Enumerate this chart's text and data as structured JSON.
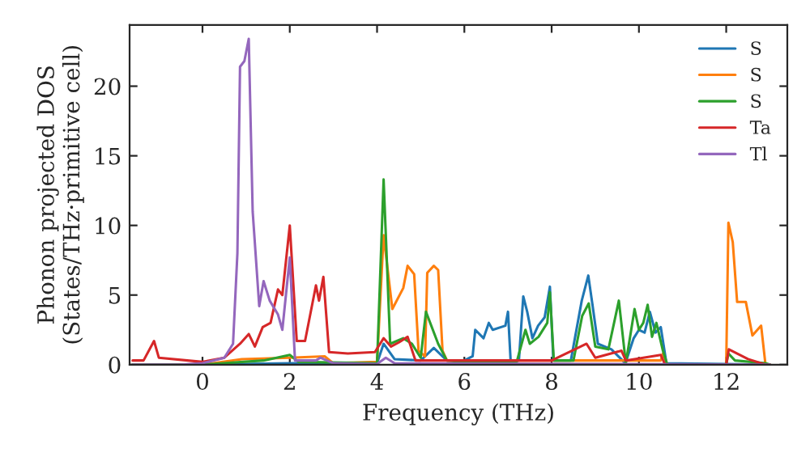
{
  "chart_data": {
    "type": "line",
    "xlabel": "Frequency (THz)",
    "ylabel": "Phonon projected DOS\n(States/THz·primitive cell)",
    "xlim": [
      -1.67,
      13.4
    ],
    "ylim": [
      0,
      24.4
    ],
    "xticks": [
      0,
      2,
      4,
      6,
      8,
      10,
      12
    ],
    "yticks": [
      0,
      5,
      10,
      15,
      20
    ],
    "grid": false,
    "legend": "top right",
    "series": [
      {
        "name": "S",
        "color": "#1f77b4",
        "x": [
          -1.6,
          0,
          2,
          4.0,
          4.15,
          4.4,
          5.0,
          5.3,
          5.6,
          6.0,
          6.19,
          6.25,
          6.44,
          6.56,
          6.65,
          6.94,
          7.0,
          7.06,
          7.25,
          7.35,
          7.44,
          7.56,
          7.69,
          7.84,
          7.96,
          8.04,
          8.44,
          8.69,
          8.84,
          8.94,
          9.06,
          9.37,
          9.56,
          9.69,
          9.88,
          10.0,
          10.13,
          10.25,
          10.38,
          10.5,
          10.63,
          13.0
        ],
        "values": [
          0,
          0,
          0.1,
          0.1,
          1.5,
          0.4,
          0.3,
          1.2,
          0.3,
          0.3,
          0.6,
          2.5,
          1.9,
          3.0,
          2.5,
          2.8,
          3.8,
          0.3,
          0.3,
          4.9,
          3.8,
          1.9,
          2.8,
          3.4,
          5.6,
          0.3,
          0.3,
          4.6,
          6.4,
          4.2,
          1.5,
          1.1,
          0.5,
          0.1,
          1.9,
          2.5,
          2.3,
          3.8,
          2.3,
          2.7,
          0.1,
          0
        ]
      },
      {
        "name": "S",
        "color": "#ff7f0e",
        "x": [
          -1.6,
          0,
          0.9,
          2.0,
          2.8,
          3.0,
          4.0,
          4.15,
          4.35,
          4.6,
          4.7,
          4.85,
          4.95,
          5.1,
          5.15,
          5.3,
          5.4,
          5.5,
          5.6,
          6.0,
          8.0,
          10.5,
          10.55,
          10.65,
          12.0,
          12.05,
          12.15,
          12.25,
          12.45,
          12.6,
          12.8,
          12.9,
          13.0
        ],
        "values": [
          0,
          0,
          0.4,
          0.5,
          0.6,
          0.1,
          0.2,
          9.3,
          4.0,
          5.5,
          7.1,
          6.5,
          1.0,
          0.6,
          6.6,
          7.1,
          6.8,
          1.0,
          0.3,
          0.3,
          0.3,
          0.3,
          0.8,
          0,
          0,
          10.2,
          8.8,
          4.5,
          4.5,
          2.1,
          2.8,
          0,
          0
        ]
      },
      {
        "name": "S",
        "color": "#2ca02c",
        "x": [
          -1.6,
          0,
          1.4,
          2.0,
          2.2,
          4.0,
          4.15,
          4.3,
          4.6,
          4.8,
          5.0,
          5.12,
          5.4,
          5.6,
          6.0,
          7.2,
          7.4,
          7.5,
          7.7,
          7.9,
          7.96,
          8.05,
          8.5,
          8.7,
          8.85,
          9.0,
          9.3,
          9.54,
          9.7,
          9.9,
          10.0,
          10.1,
          10.2,
          10.3,
          10.4,
          10.55,
          10.65,
          12.0,
          12.05,
          12.2,
          12.9,
          13.0
        ],
        "values": [
          0,
          0,
          0.3,
          0.7,
          0.2,
          0.1,
          13.3,
          1.5,
          1.9,
          1.5,
          0.5,
          3.8,
          1.5,
          0.3,
          0.2,
          0.2,
          2.5,
          1.5,
          2.0,
          3.0,
          5.2,
          0.3,
          0.3,
          3.5,
          4.4,
          1.3,
          1.1,
          4.6,
          0.1,
          4.0,
          2.5,
          3.0,
          4.3,
          2.0,
          3.0,
          1.0,
          0,
          0,
          0.8,
          0.3,
          0.1,
          0
        ]
      },
      {
        "name": "Ta",
        "color": "#d62728",
        "x": [
          -1.6,
          -1.35,
          -1.11,
          -1.0,
          0,
          0.5,
          0.86,
          1.06,
          1.2,
          1.38,
          1.56,
          1.73,
          1.83,
          2.0,
          2.16,
          2.35,
          2.6,
          2.67,
          2.77,
          2.9,
          3.33,
          3.95,
          4.15,
          4.32,
          4.5,
          4.7,
          4.88,
          6.0,
          8.0,
          8.8,
          9.0,
          9.6,
          9.7,
          10.5,
          10.6,
          12.0,
          12.06,
          12.5,
          12.9,
          13.0
        ],
        "values": [
          0.3,
          0.3,
          1.7,
          0.5,
          0.2,
          0.5,
          1.5,
          2.2,
          1.3,
          2.7,
          3.0,
          5.4,
          5.0,
          10.0,
          1.7,
          1.7,
          5.7,
          4.6,
          6.3,
          0.9,
          0.8,
          0.9,
          1.9,
          1.3,
          1.6,
          2.0,
          0.3,
          0.3,
          0.3,
          1.5,
          0.5,
          1.0,
          0.3,
          0.7,
          0,
          0,
          1.1,
          0.4,
          0,
          0
        ]
      },
      {
        "name": "Tl",
        "color": "#9467bd",
        "x": [
          -1.6,
          -0.5,
          0,
          0.5,
          0.7,
          0.8,
          0.86,
          0.96,
          1.06,
          1.15,
          1.3,
          1.4,
          1.54,
          1.73,
          1.83,
          2.0,
          2.12,
          2.6,
          2.7,
          3.0,
          4.0,
          4.2,
          4.4,
          13.0
        ],
        "values": [
          0,
          0,
          0.1,
          0.5,
          1.5,
          8.0,
          21.4,
          21.8,
          23.4,
          11.0,
          4.2,
          6.0,
          4.6,
          3.6,
          2.5,
          7.7,
          0.3,
          0.3,
          0.5,
          0.1,
          0.05,
          0.5,
          0.1,
          0
        ]
      }
    ]
  }
}
